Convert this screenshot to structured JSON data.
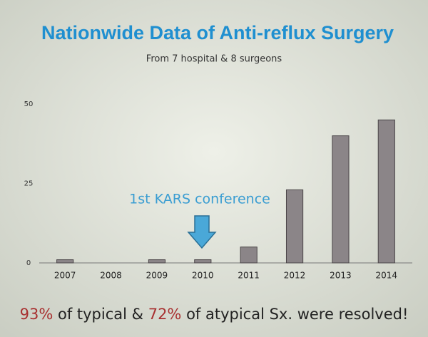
{
  "chart_data": {
    "type": "bar",
    "title": "Nationwide Data of Anti-reflux Surgery",
    "subtitle": "From 7 hospital & 8 surgeons",
    "annotation": "1st KARS conference",
    "categories": [
      "2007",
      "2008",
      "2009",
      "2010",
      "2011",
      "2012",
      "2013",
      "2014"
    ],
    "values": [
      1,
      0,
      1,
      1,
      5,
      23,
      40,
      45
    ],
    "color": "#8b8588",
    "ylim": [
      0,
      50
    ],
    "yticks": [
      0,
      25,
      50
    ],
    "grid": false,
    "footnote": [
      "93%",
      " of typical & ",
      "72%",
      " of atypical Sx. were resolved!"
    ]
  }
}
